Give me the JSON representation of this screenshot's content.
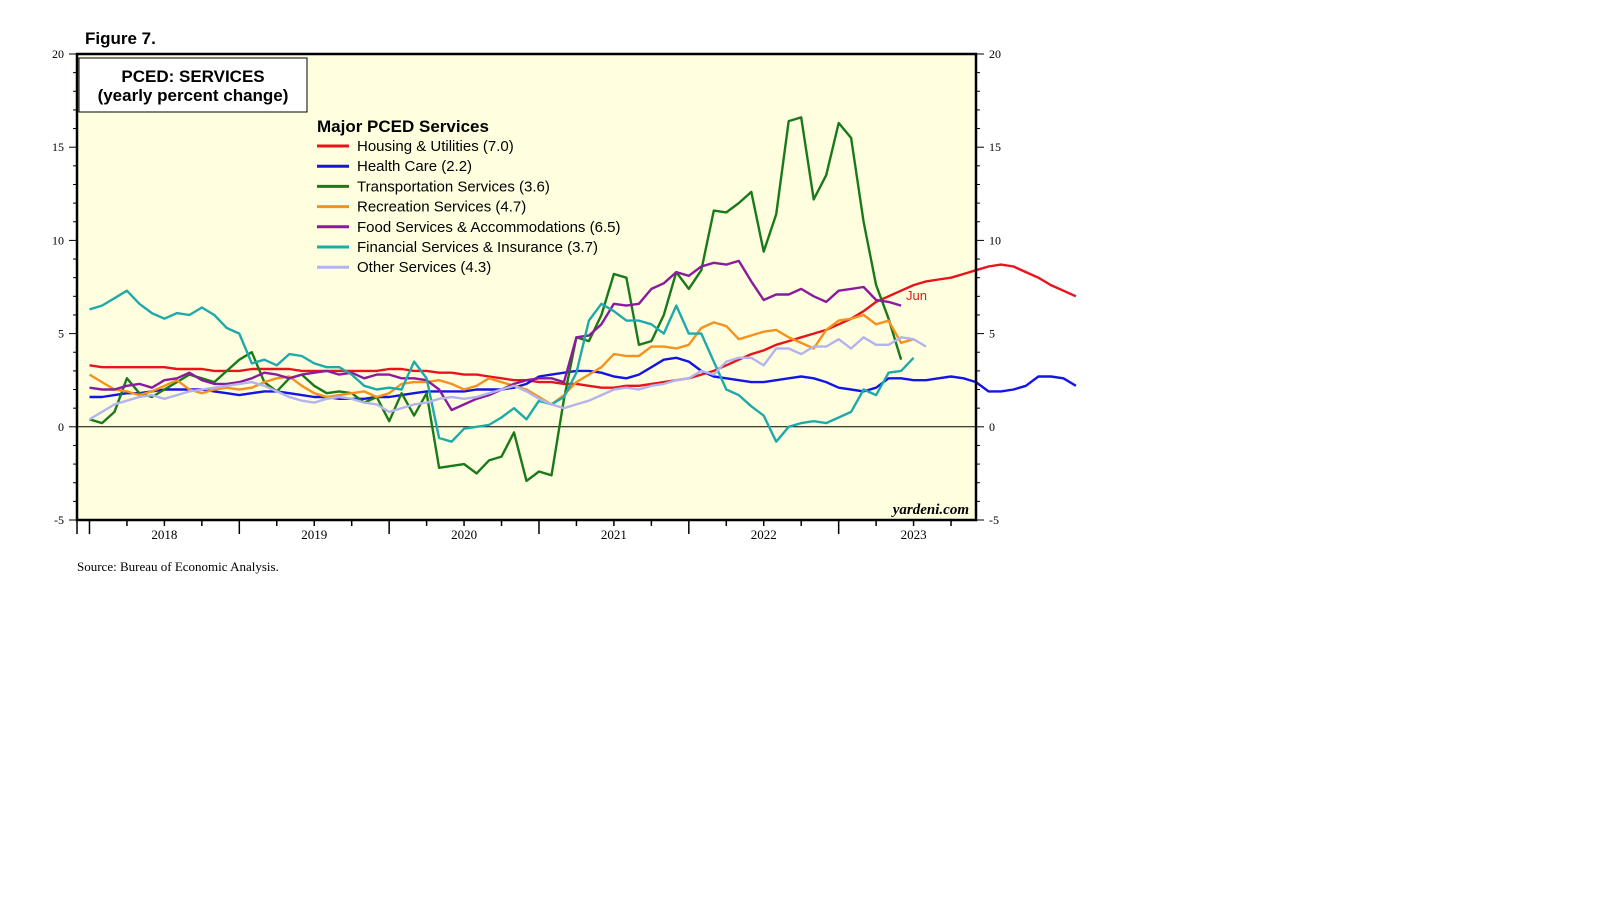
{
  "figure_label": "Figure 7.",
  "source": "Source: Bureau of Economic Analysis.",
  "watermark": "yardeni.com",
  "chart_data": {
    "type": "line",
    "title_line1": "PCED: SERVICES",
    "title_line2": "(yearly percent change)",
    "legend_title": "Major PCED Services",
    "legend_placement": "top-left",
    "ylim": [
      -5,
      20
    ],
    "y_ticks": [
      -5,
      0,
      5,
      10,
      15,
      20
    ],
    "y_ticks_right": [
      -5,
      0,
      5,
      10,
      15,
      20
    ],
    "x_ticks": [
      "2018",
      "2019",
      "2020",
      "2021",
      "2022",
      "2023"
    ],
    "x_range": [
      "2017-12",
      "2023-12"
    ],
    "last_point_label": "Jun",
    "zero_line": true,
    "background": "#ffffe0",
    "series": [
      {
        "name": "Housing & Utilities (7.0)",
        "color": "#e8141c",
        "start": "2018-01",
        "values": [
          3.3,
          3.2,
          3.2,
          3.2,
          3.2,
          3.2,
          3.2,
          3.1,
          3.1,
          3.1,
          3.0,
          3.0,
          3.0,
          3.1,
          3.1,
          3.1,
          3.1,
          3.0,
          3.0,
          3.0,
          3.0,
          3.0,
          3.0,
          3.0,
          3.1,
          3.1,
          3.0,
          3.0,
          2.9,
          2.9,
          2.8,
          2.8,
          2.7,
          2.6,
          2.5,
          2.5,
          2.4,
          2.4,
          2.3,
          2.3,
          2.2,
          2.1,
          2.1,
          2.2,
          2.2,
          2.3,
          2.4,
          2.5,
          2.6,
          2.8,
          3.0,
          3.3,
          3.6,
          3.9,
          4.1,
          4.4,
          4.6,
          4.8,
          5.0,
          5.2,
          5.5,
          5.8,
          6.2,
          6.7,
          7.0,
          7.3,
          7.6,
          7.8,
          7.9,
          8.0,
          8.2,
          8.4,
          8.6,
          8.7,
          8.6,
          8.3,
          8.0,
          7.6,
          7.3,
          7.0
        ]
      },
      {
        "name": "Health Care (2.2)",
        "color": "#1414e6",
        "start": "2018-01",
        "values": [
          1.6,
          1.6,
          1.7,
          1.8,
          1.8,
          1.9,
          2.0,
          2.0,
          2.0,
          2.0,
          1.9,
          1.8,
          1.7,
          1.8,
          1.9,
          1.9,
          1.8,
          1.7,
          1.6,
          1.6,
          1.5,
          1.5,
          1.5,
          1.6,
          1.6,
          1.7,
          1.8,
          1.9,
          1.9,
          1.9,
          1.9,
          2.0,
          2.0,
          2.0,
          2.1,
          2.3,
          2.7,
          2.8,
          2.9,
          3.0,
          3.0,
          2.9,
          2.7,
          2.6,
          2.8,
          3.2,
          3.6,
          3.7,
          3.5,
          3.0,
          2.7,
          2.6,
          2.5,
          2.4,
          2.4,
          2.5,
          2.6,
          2.7,
          2.6,
          2.4,
          2.1,
          2.0,
          1.9,
          2.1,
          2.6,
          2.6,
          2.5,
          2.5,
          2.6,
          2.7,
          2.6,
          2.4,
          1.9,
          1.9,
          2.0,
          2.2,
          2.7,
          2.7,
          2.6,
          2.2
        ]
      },
      {
        "name": "Transportation Services (3.6)",
        "color": "#1a7a1a",
        "start": "2018-01",
        "values": [
          0.4,
          0.2,
          0.8,
          2.6,
          1.8,
          1.6,
          2.0,
          2.4,
          2.8,
          2.6,
          2.4,
          3.0,
          3.6,
          4.0,
          2.4,
          1.9,
          2.6,
          2.8,
          2.2,
          1.8,
          1.9,
          1.8,
          1.3,
          1.6,
          0.3,
          1.8,
          0.6,
          1.8,
          -2.2,
          -2.1,
          -2.0,
          -2.5,
          -1.8,
          -1.6,
          -0.3,
          -2.9,
          -2.4,
          -2.6,
          1.5,
          4.8,
          4.6,
          6.0,
          8.2,
          8.0,
          4.4,
          4.6,
          6.0,
          8.3,
          7.4,
          8.4,
          11.6,
          11.5,
          12.0,
          12.6,
          9.4,
          11.4,
          16.4,
          16.6,
          12.2,
          13.5,
          16.3,
          15.5,
          11.0,
          7.6,
          5.8,
          3.6
        ]
      },
      {
        "name": "Recreation Services (4.7)",
        "color": "#f5921e",
        "start": "2018-01",
        "values": [
          2.8,
          2.4,
          2.0,
          1.9,
          1.7,
          1.9,
          2.2,
          2.5,
          2.0,
          1.8,
          2.0,
          2.1,
          2.0,
          2.1,
          2.4,
          2.6,
          2.7,
          2.2,
          1.8,
          1.6,
          1.7,
          1.8,
          1.9,
          1.6,
          1.8,
          2.3,
          2.4,
          2.4,
          2.5,
          2.3,
          2.0,
          2.2,
          2.6,
          2.4,
          2.2,
          2.0,
          1.6,
          1.2,
          1.7,
          2.4,
          2.8,
          3.2,
          3.9,
          3.8,
          3.8,
          4.3,
          4.3,
          4.2,
          4.4,
          5.3,
          5.6,
          5.4,
          4.7,
          4.9,
          5.1,
          5.2,
          4.8,
          4.5,
          4.2,
          5.2,
          5.7,
          5.8,
          6.0,
          5.5,
          5.7,
          4.5,
          4.7
        ]
      },
      {
        "name": "Food Services & Accommodations (6.5)",
        "color": "#8a1a9e",
        "start": "2018-01",
        "values": [
          2.1,
          2.0,
          2.0,
          2.2,
          2.3,
          2.1,
          2.5,
          2.6,
          2.9,
          2.5,
          2.3,
          2.3,
          2.4,
          2.6,
          2.9,
          2.8,
          2.6,
          2.8,
          2.9,
          3.0,
          2.8,
          2.9,
          2.6,
          2.8,
          2.8,
          2.6,
          2.6,
          2.5,
          2.0,
          0.9,
          1.2,
          1.5,
          1.7,
          2.0,
          2.3,
          2.5,
          2.6,
          2.6,
          2.4,
          4.8,
          4.9,
          5.5,
          6.6,
          6.5,
          6.6,
          7.4,
          7.7,
          8.3,
          8.1,
          8.6,
          8.8,
          8.7,
          8.9,
          7.8,
          6.8,
          7.1,
          7.1,
          7.4,
          7.0,
          6.7,
          7.3,
          7.4,
          7.5,
          6.8,
          6.7,
          6.5
        ]
      },
      {
        "name": "Financial Services & Insurance (3.7)",
        "color": "#1eaaaa",
        "start": "2018-01",
        "values": [
          6.3,
          6.5,
          6.9,
          7.3,
          6.6,
          6.1,
          5.8,
          6.1,
          6.0,
          6.4,
          6.0,
          5.3,
          5.0,
          3.4,
          3.6,
          3.3,
          3.9,
          3.8,
          3.4,
          3.2,
          3.2,
          2.8,
          2.2,
          2.0,
          2.1,
          2.0,
          3.5,
          2.6,
          -0.6,
          -0.8,
          -0.1,
          0.0,
          0.1,
          0.5,
          1.0,
          0.4,
          1.4,
          1.2,
          1.6,
          2.9,
          5.7,
          6.6,
          6.2,
          5.7,
          5.7,
          5.5,
          5.0,
          6.5,
          5.0,
          5.0,
          3.5,
          2.0,
          1.7,
          1.1,
          0.6,
          -0.8,
          0.0,
          0.2,
          0.3,
          0.2,
          0.5,
          0.8,
          2.0,
          1.7,
          2.9,
          3.0,
          3.7
        ]
      },
      {
        "name": "Other Services (4.3)",
        "color": "#b3b3ee",
        "start": "2018-01",
        "values": [
          0.4,
          0.8,
          1.2,
          1.4,
          1.6,
          1.7,
          1.5,
          1.7,
          1.9,
          2.0,
          2.1,
          2.2,
          2.3,
          2.4,
          2.2,
          1.9,
          1.6,
          1.4,
          1.3,
          1.5,
          1.6,
          1.5,
          1.3,
          1.2,
          0.8,
          1.0,
          1.2,
          1.3,
          1.5,
          1.6,
          1.5,
          1.6,
          1.8,
          2.0,
          2.2,
          1.9,
          1.5,
          1.2,
          1.0,
          1.2,
          1.4,
          1.7,
          2.0,
          2.1,
          2.0,
          2.2,
          2.3,
          2.5,
          2.6,
          3.0,
          2.8,
          3.5,
          3.7,
          3.7,
          3.3,
          4.2,
          4.2,
          3.9,
          4.3,
          4.3,
          4.7,
          4.2,
          4.8,
          4.4,
          4.4,
          4.8,
          4.7,
          4.3
        ]
      }
    ]
  }
}
